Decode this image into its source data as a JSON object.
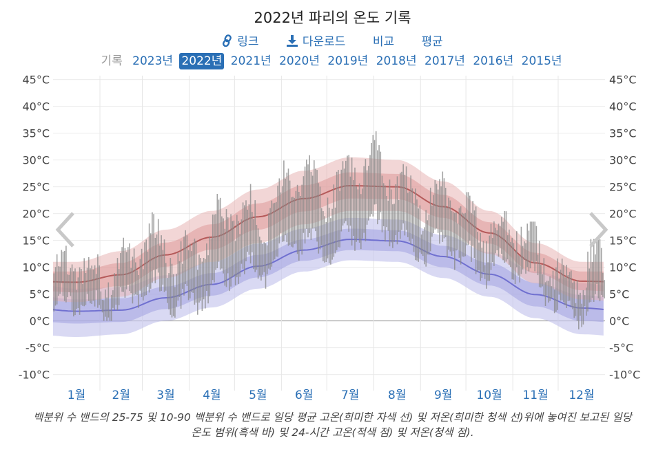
{
  "title": "2022년 파리의 온도 기록",
  "links": [
    {
      "label": "링크",
      "icon": "link-icon"
    },
    {
      "label": "다운로드",
      "icon": "download-icon"
    },
    {
      "label": "비교"
    },
    {
      "label": "평균"
    }
  ],
  "years_label": "기록",
  "years": [
    "2023년",
    "2022년",
    "2021년",
    "2020년",
    "2019년",
    "2018년",
    "2017년",
    "2016년",
    "2015년"
  ],
  "active_year": "2022년",
  "caption": "백분위 수 밴드의 25-75 및 10-90 백분위 수 밴드로 일당 평균 고온(희미한 자색 선) 및 저온(희미한 청색 선)위에 놓여진 보고된 일당 온도 범위(흑색 바) 및 24-시간 고온(적색 점) 및 저온(청색 점).",
  "colors": {
    "accent": "#2a6fb5",
    "high_band_outer": "#e8b4b4",
    "high_band_inner": "#d98f8f",
    "high_mean": "#b55a5a",
    "low_band_outer": "#c4c4ec",
    "low_band_inner": "#a3a3e0",
    "low_mean": "#7070d0",
    "range_bar": "#8a8a8a"
  },
  "chart_data": {
    "type": "bar",
    "y_unit": "°C",
    "ylim": [
      -13,
      47
    ],
    "y_ticks": [
      "45°C",
      "40°C",
      "35°C",
      "30°C",
      "25°C",
      "20°C",
      "15°C",
      "10°C",
      "5°C",
      "0°C",
      "-5°C",
      "-10°C"
    ],
    "y_tick_values": [
      45,
      40,
      35,
      30,
      25,
      20,
      15,
      10,
      5,
      0,
      -5,
      -10
    ],
    "months": [
      "1월",
      "2월",
      "3월",
      "4월",
      "5월",
      "6월",
      "7월",
      "8월",
      "9월",
      "10월",
      "11월",
      "12월"
    ],
    "grid": true,
    "normals_monthly": {
      "high_mean": [
        7.2,
        8.6,
        12.3,
        15.6,
        19.4,
        22.8,
        25.2,
        25.0,
        21.3,
        16.4,
        10.8,
        7.4
      ],
      "high_p10": [
        3.5,
        4.5,
        8.0,
        11.0,
        14.5,
        18.0,
        20.5,
        20.5,
        17.0,
        12.5,
        7.0,
        4.0
      ],
      "high_p25": [
        5.3,
        6.5,
        10.1,
        13.3,
        17.0,
        20.4,
        22.8,
        22.7,
        19.2,
        14.4,
        8.9,
        5.7
      ],
      "high_p75": [
        9.2,
        10.8,
        14.6,
        18.0,
        21.9,
        25.3,
        27.7,
        27.4,
        23.5,
        18.4,
        12.7,
        9.2
      ],
      "high_p90": [
        11.0,
        13.0,
        17.0,
        20.5,
        24.5,
        28.0,
        30.5,
        30.0,
        26.0,
        20.5,
        14.5,
        11.0
      ],
      "low_mean": [
        1.8,
        2.0,
        4.3,
        6.8,
        10.2,
        13.2,
        15.2,
        14.9,
        12.0,
        8.7,
        4.9,
        2.4
      ],
      "low_p10": [
        -3.0,
        -2.5,
        0.0,
        2.5,
        6.0,
        9.2,
        11.3,
        11.0,
        8.0,
        4.5,
        0.5,
        -2.5
      ],
      "low_p25": [
        -0.5,
        -0.2,
        2.2,
        4.7,
        8.1,
        11.2,
        13.2,
        13.0,
        10.0,
        6.6,
        2.7,
        0.0
      ],
      "low_p75": [
        4.0,
        4.2,
        6.4,
        8.9,
        12.3,
        15.2,
        17.2,
        16.9,
        14.0,
        10.8,
        7.1,
        4.8
      ],
      "low_p90": [
        6.0,
        6.3,
        8.5,
        11.0,
        14.4,
        17.2,
        19.2,
        18.9,
        16.0,
        12.8,
        9.2,
        7.0
      ]
    },
    "daily_observed_monthly": {
      "note_shape": "monthly summaries of 2022 daily ranges used to draw per-day bars",
      "avg_high": [
        8.0,
        11.0,
        13.0,
        15.5,
        22.0,
        24.5,
        28.0,
        26.5,
        21.0,
        19.0,
        13.0,
        8.0
      ],
      "avg_low": [
        2.0,
        4.5,
        4.5,
        5.0,
        11.0,
        13.5,
        16.0,
        16.5,
        12.0,
        11.0,
        7.5,
        1.5
      ],
      "max_high": [
        14.0,
        15.5,
        21.0,
        24.5,
        29.5,
        36.5,
        40.0,
        36.5,
        29.5,
        24.0,
        18.5,
        15.5
      ],
      "min_low": [
        -3.0,
        0.0,
        -1.5,
        0.0,
        6.0,
        8.5,
        10.5,
        11.0,
        7.0,
        6.0,
        1.0,
        -6.0
      ]
    }
  }
}
